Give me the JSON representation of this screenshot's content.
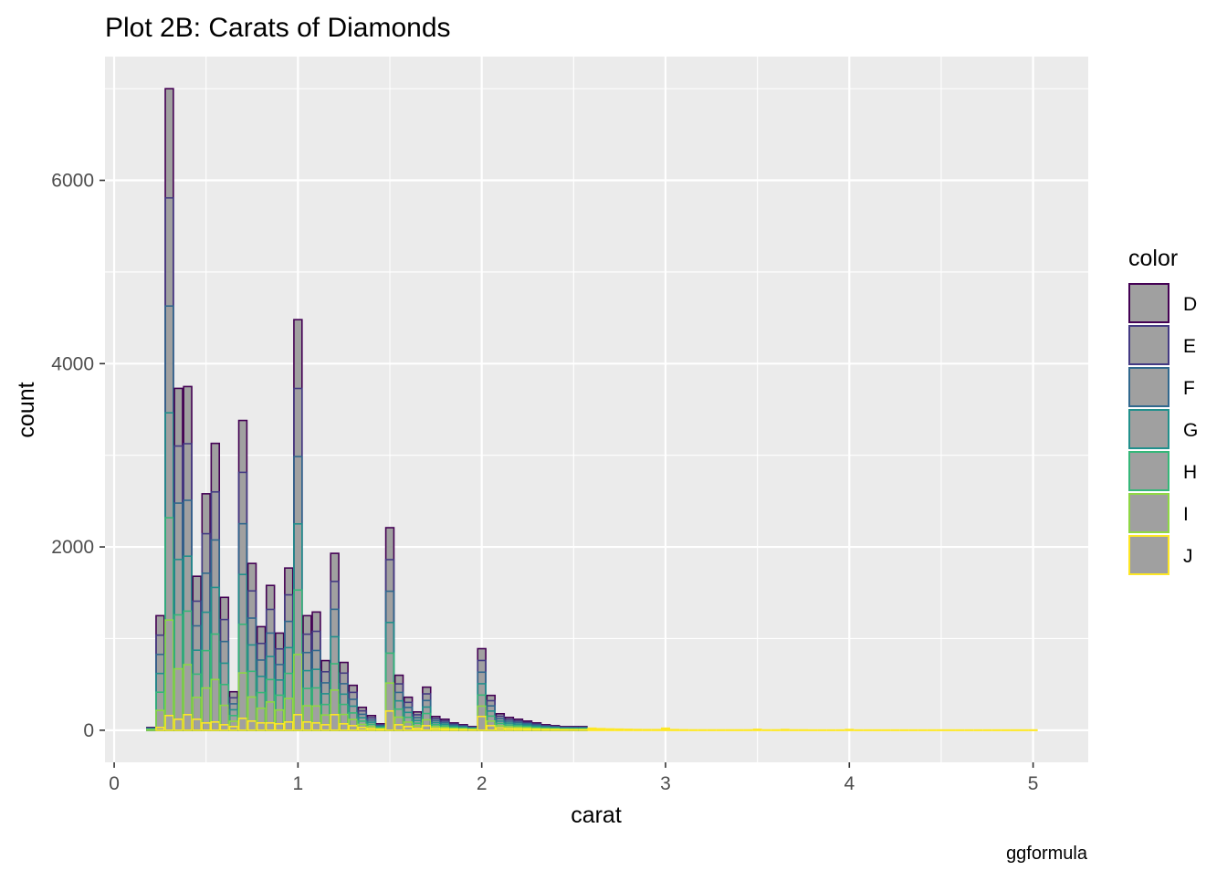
{
  "chart_data": {
    "type": "bar",
    "stacked": true,
    "title": "Plot 2B: Carats of Diamonds",
    "xlabel": "carat",
    "ylabel": "count",
    "caption": "ggformula",
    "xlim": [
      -0.05,
      5.3
    ],
    "ylim": [
      -350,
      7350
    ],
    "x_ticks": [
      0,
      1,
      2,
      3,
      4,
      5
    ],
    "y_ticks": [
      0,
      2000,
      4000,
      6000
    ],
    "bin_width": 0.05,
    "bin_fill": "#a0a0a0",
    "legend": {
      "title": "color",
      "placement": "right",
      "items": [
        {
          "label": "D",
          "color": "#440154"
        },
        {
          "label": "E",
          "color": "#443A83"
        },
        {
          "label": "F",
          "color": "#31688E"
        },
        {
          "label": "G",
          "color": "#21908C"
        },
        {
          "label": "H",
          "color": "#35B779"
        },
        {
          "label": "I",
          "color": "#8FD744"
        },
        {
          "label": "J",
          "color": "#FDE725"
        }
      ]
    },
    "x": [
      0.2,
      0.25,
      0.3,
      0.35,
      0.4,
      0.45,
      0.5,
      0.55,
      0.6,
      0.65,
      0.7,
      0.75,
      0.8,
      0.85,
      0.9,
      0.95,
      1.0,
      1.05,
      1.1,
      1.15,
      1.2,
      1.25,
      1.3,
      1.35,
      1.4,
      1.45,
      1.5,
      1.55,
      1.6,
      1.65,
      1.7,
      1.75,
      1.8,
      1.85,
      1.9,
      1.95,
      2.0,
      2.05,
      2.1,
      2.15,
      2.2,
      2.25,
      2.3,
      2.35,
      2.4,
      2.45,
      2.5,
      2.55,
      2.6,
      2.65,
      2.7,
      2.75,
      2.8,
      2.85,
      2.9,
      2.95,
      3.0,
      3.05,
      3.1,
      3.15,
      3.2,
      3.25,
      3.3,
      3.35,
      3.4,
      3.45,
      3.5,
      3.55,
      3.6,
      3.65,
      3.7,
      3.75,
      3.8,
      3.85,
      3.9,
      3.95,
      4.0,
      4.05,
      4.1,
      4.15,
      4.2,
      4.25,
      4.3,
      4.35,
      4.4,
      4.45,
      4.5,
      4.55,
      4.6,
      4.65,
      4.7,
      4.75,
      4.8,
      4.85,
      4.9,
      4.95,
      5.0
    ],
    "totals": [
      30,
      1250,
      7000,
      3730,
      3750,
      1680,
      2580,
      3130,
      1450,
      420,
      3380,
      1820,
      1130,
      1580,
      1060,
      1770,
      4480,
      1250,
      1290,
      760,
      1930,
      740,
      490,
      250,
      160,
      70,
      2210,
      600,
      360,
      200,
      470,
      150,
      120,
      80,
      60,
      40,
      890,
      380,
      180,
      140,
      120,
      100,
      80,
      60,
      50,
      40,
      40,
      40,
      20,
      15,
      12,
      10,
      8,
      6,
      5,
      5,
      20,
      5,
      3,
      2,
      2,
      2,
      2,
      2,
      2,
      2,
      8,
      2,
      2,
      6,
      2,
      2,
      1,
      1,
      1,
      1,
      6,
      1,
      1,
      1,
      1,
      1,
      1,
      1,
      1,
      1,
      1,
      1,
      1,
      1,
      1,
      1,
      1,
      1,
      1,
      1,
      1
    ],
    "series": [
      {
        "name": "J",
        "values": [
          0,
          30,
          160,
          120,
          170,
          120,
          80,
          90,
          60,
          40,
          130,
          100,
          80,
          80,
          70,
          90,
          170,
          90,
          80,
          60,
          170,
          70,
          50,
          30,
          20,
          10,
          210,
          60,
          40,
          20,
          50,
          20,
          15,
          10,
          8,
          5,
          150,
          50,
          25,
          20,
          18,
          15,
          10,
          8,
          7,
          5,
          5,
          5,
          3,
          2,
          2,
          2,
          1,
          1,
          1,
          1,
          3,
          1,
          0,
          0,
          0,
          0,
          0,
          0,
          0,
          0,
          1,
          0,
          0,
          1,
          0,
          0,
          0,
          0,
          0,
          0,
          1,
          0,
          0,
          0,
          0,
          0,
          0,
          0,
          0,
          0,
          0,
          0,
          0,
          0,
          0,
          0,
          0,
          0,
          0,
          0,
          0
        ]
      }
    ]
  }
}
